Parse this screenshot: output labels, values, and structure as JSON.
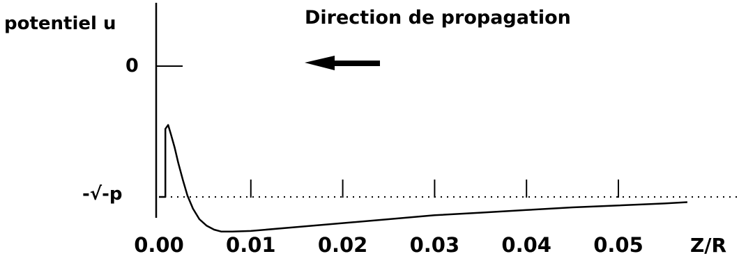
{
  "chart_data": {
    "type": "line",
    "title": "Direction de propagation",
    "ylabel": "potentiel u",
    "xlabel": "Z/R",
    "xlim": [
      0.0,
      0.0575
    ],
    "x_ticks": [
      "0.00",
      "0.01",
      "0.02",
      "0.03",
      "0.04",
      "0.05"
    ],
    "y_ticks": [
      {
        "label": "0",
        "value": 0
      },
      {
        "label": "-√-p",
        "value": -1
      }
    ],
    "reference_line": {
      "style": "dotted",
      "value": -1
    },
    "arrow": {
      "direction": "left"
    },
    "series": [
      {
        "x": [
          0.0,
          0.0007,
          0.0007,
          0.001,
          0.0013,
          0.0017,
          0.0021,
          0.0026,
          0.0031,
          0.0037,
          0.0044,
          0.0052,
          0.006,
          0.0068,
          0.008,
          0.01,
          0.015,
          0.02,
          0.025,
          0.03,
          0.035,
          0.04,
          0.045,
          0.05,
          0.055,
          0.0575
        ],
        "y": [
          -1.0,
          -1.0,
          -0.48,
          -0.45,
          -0.52,
          -0.62,
          -0.74,
          -0.87,
          -0.99,
          -1.09,
          -1.17,
          -1.22,
          -1.25,
          -1.265,
          -1.265,
          -1.26,
          -1.23,
          -1.2,
          -1.17,
          -1.14,
          -1.12,
          -1.1,
          -1.08,
          -1.065,
          -1.05,
          -1.04
        ]
      }
    ]
  }
}
